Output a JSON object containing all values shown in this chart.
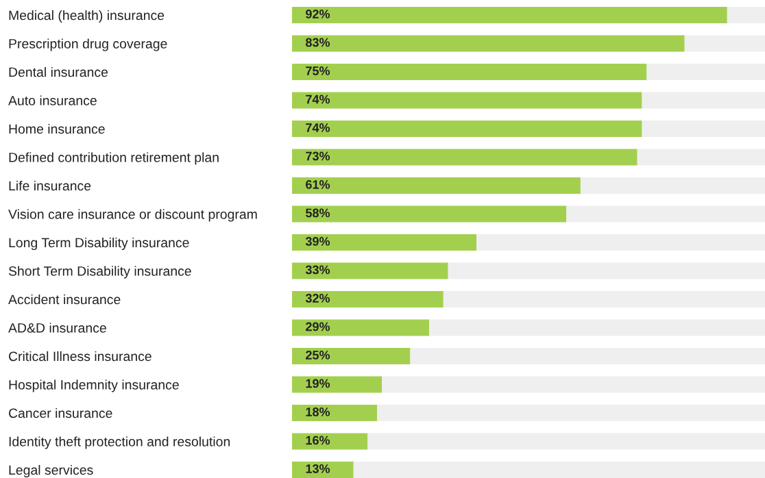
{
  "chart_data": {
    "type": "bar",
    "orientation": "horizontal",
    "stacked": true,
    "tick_labels": "y",
    "grid": false,
    "xlim": [
      0,
      100
    ],
    "categories": [
      "Medical (health) insurance",
      "Prescription drug coverage",
      "Dental insurance",
      "Auto insurance",
      "Home insurance",
      "Defined contribution retirement plan",
      "Life insurance",
      "Vision care insurance or discount program",
      "Long Term Disability insurance",
      "Short Term Disability insurance",
      "Accident insurance",
      "AD&D insurance",
      "Critical Illness insurance",
      "Hospital Indemnity insurance",
      "Cancer insurance",
      "Identity theft protection and resolution",
      "Legal services"
    ],
    "series": [
      {
        "color": "#a3cf4f",
        "values": [
          92,
          83,
          75,
          74,
          74,
          73,
          61,
          58,
          39,
          33,
          32,
          29,
          25,
          19,
          18,
          16,
          13
        ],
        "value_labels": [
          "92%",
          "83%",
          "75%",
          "74%",
          "74%",
          "73%",
          "61%",
          "58%",
          "39%",
          "33%",
          "32%",
          "29%",
          "25%",
          "19%",
          "18%",
          "16%",
          "13%"
        ]
      },
      {
        "color": "#eeefee",
        "values": [
          8,
          17,
          25,
          26,
          26,
          27,
          39,
          42,
          61,
          67,
          68,
          71,
          75,
          81,
          82,
          84,
          87
        ]
      }
    ]
  }
}
